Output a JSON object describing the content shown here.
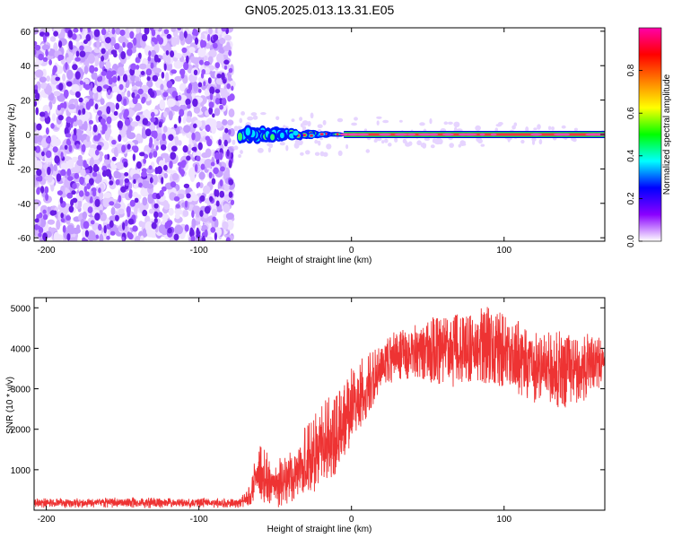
{
  "title": "GN05.2025.013.13.31.E05",
  "chart_data": [
    {
      "type": "heatmap",
      "xlabel": "Height of straight line (km)",
      "ylabel": "Frequency (Hz)",
      "xlim": [
        -208,
        166
      ],
      "ylim": [
        -62,
        62
      ],
      "x_ticks": [
        -200,
        -100,
        0,
        100
      ],
      "y_ticks": [
        -60,
        -40,
        -20,
        0,
        20,
        40,
        60
      ],
      "noise_region_x": [
        -208,
        -78
      ],
      "signal_band_x": [
        -78,
        166
      ],
      "signal_frequency_hz": 0,
      "colorbar": {
        "label": "Normalized spectral amplitude",
        "range": [
          0,
          1
        ],
        "ticks": [
          "0.0",
          "0.2",
          "0.4",
          "0.6",
          "0.8"
        ],
        "colormap": [
          "#ffffff",
          "#8a00ff",
          "#0000ff",
          "#00ffff",
          "#00ff00",
          "#ffff00",
          "#ff8000",
          "#ff0000",
          "#ff00aa"
        ]
      }
    },
    {
      "type": "line",
      "xlabel": "Height of straight line (km)",
      "ylabel": "SNR (10 * v/v)",
      "xlim": [
        -208,
        166
      ],
      "ylim": [
        0,
        5250
      ],
      "x_ticks": [
        -200,
        -100,
        0,
        100
      ],
      "y_ticks": [
        1000,
        2000,
        3000,
        4000,
        5000
      ],
      "series": [
        {
          "color": "#ee3333",
          "envelope": [
            {
              "x": -208,
              "low": 50,
              "high": 300
            },
            {
              "x": -150,
              "low": 50,
              "high": 320
            },
            {
              "x": -75,
              "low": 50,
              "high": 300
            },
            {
              "x": -68,
              "low": 60,
              "high": 500
            },
            {
              "x": -60,
              "low": 300,
              "high": 1800
            },
            {
              "x": -55,
              "low": 100,
              "high": 1400
            },
            {
              "x": -45,
              "low": 50,
              "high": 1300
            },
            {
              "x": -38,
              "low": 200,
              "high": 1700
            },
            {
              "x": -30,
              "low": 400,
              "high": 2100
            },
            {
              "x": -20,
              "low": 500,
              "high": 2600
            },
            {
              "x": -10,
              "low": 900,
              "high": 3000
            },
            {
              "x": 0,
              "low": 1500,
              "high": 3500
            },
            {
              "x": 10,
              "low": 2300,
              "high": 3900
            },
            {
              "x": 20,
              "low": 3000,
              "high": 4200
            },
            {
              "x": 30,
              "low": 3200,
              "high": 4500
            },
            {
              "x": 45,
              "low": 3200,
              "high": 4600
            },
            {
              "x": 60,
              "low": 3000,
              "high": 4900
            },
            {
              "x": 75,
              "low": 3100,
              "high": 4800
            },
            {
              "x": 90,
              "low": 3100,
              "high": 5100
            },
            {
              "x": 105,
              "low": 3000,
              "high": 4800
            },
            {
              "x": 115,
              "low": 2700,
              "high": 4600
            },
            {
              "x": 125,
              "low": 2600,
              "high": 4500
            },
            {
              "x": 140,
              "low": 2500,
              "high": 4400
            },
            {
              "x": 155,
              "low": 2700,
              "high": 4400
            },
            {
              "x": 166,
              "low": 3200,
              "high": 4200
            }
          ]
        }
      ]
    }
  ]
}
